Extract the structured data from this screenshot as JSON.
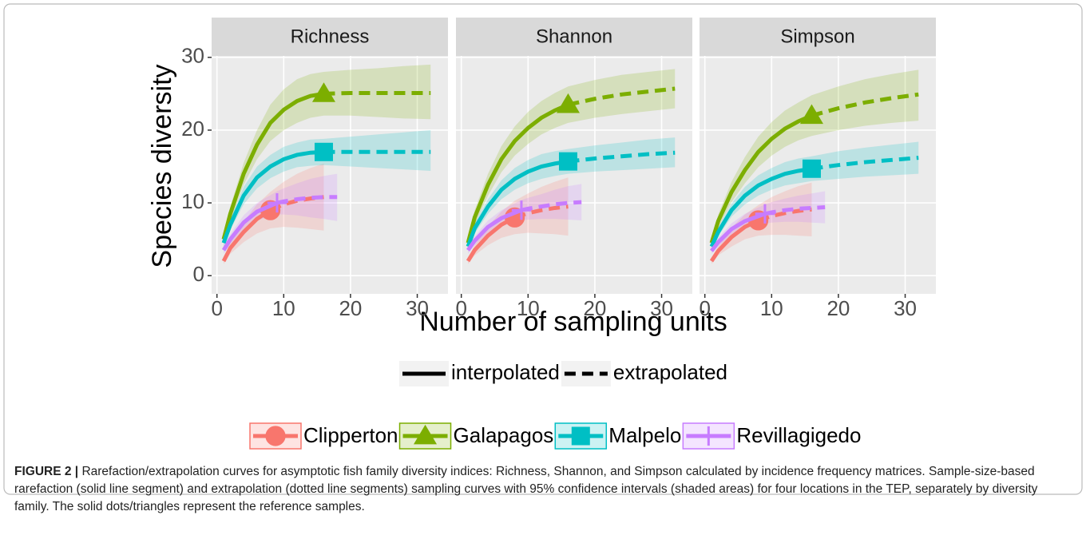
{
  "chart_data": {
    "type": "line",
    "ylabel": "Species diversity",
    "xlabel": "Number of sampling units",
    "xlim": [
      -0.8,
      34.6
    ],
    "xticks": [
      0,
      10,
      20,
      30
    ],
    "ylim": [
      -2.5,
      30.2
    ],
    "yticks": [
      0,
      10,
      20,
      30
    ],
    "grid": true,
    "linetypes": [
      "interpolated",
      "extrapolated"
    ],
    "facets": [
      {
        "title": "Richness",
        "series": [
          {
            "name": "Clipperton",
            "color": "#F8766D",
            "marker": "circle",
            "x": [
              1,
              2,
              4,
              6,
              8,
              10,
              12,
              14,
              16
            ],
            "values": [
              2,
              3.8,
              6,
              7.8,
              9,
              9.8,
              10.3,
              10.6,
              10.8
            ],
            "lower": [
              1.6,
              3,
              4.6,
              5.8,
              6.5,
              6.7,
              6.6,
              6.4,
              6.2
            ],
            "upper": [
              2.4,
              4.6,
              7.4,
              9.8,
              11.5,
              12.9,
              14,
              14.8,
              15.4
            ],
            "reference": {
              "x": 8,
              "y": 9
            }
          },
          {
            "name": "Galapagos",
            "color": "#7CAE00",
            "marker": "triangle",
            "x": [
              1,
              2,
              4,
              6,
              8,
              10,
              12,
              14,
              16,
              20,
              24,
              28,
              32
            ],
            "values": [
              5,
              8.5,
              14,
              18,
              21,
              22.8,
              24,
              24.7,
              25,
              25.1,
              25.1,
              25.1,
              25.1
            ],
            "lower": [
              4.5,
              7.5,
              12.5,
              16,
              18.5,
              20,
              21,
              21.7,
              22,
              22,
              21.8,
              21.6,
              21.5
            ],
            "upper": [
              5.5,
              9.5,
              15.5,
              20,
              23.5,
              25.6,
              27,
              27.7,
              28,
              28.3,
              28.5,
              28.8,
              29
            ],
            "reference": {
              "x": 16,
              "y": 25
            }
          },
          {
            "name": "Malpelo",
            "color": "#00BFC4",
            "marker": "square",
            "x": [
              1,
              2,
              4,
              6,
              8,
              10,
              12,
              14,
              16,
              20,
              24,
              28,
              32
            ],
            "values": [
              4.5,
              7,
              11,
              13.5,
              15,
              16,
              16.6,
              16.9,
              17,
              17,
              17,
              17,
              17
            ],
            "lower": [
              4,
              6.3,
              9.8,
              12,
              13.4,
              14.3,
              14.9,
              15.1,
              15.2,
              15,
              14.8,
              14.6,
              14.4
            ],
            "upper": [
              5,
              7.7,
              12.2,
              15,
              16.6,
              17.7,
              18.3,
              18.7,
              18.8,
              19.1,
              19.4,
              19.7,
              20
            ],
            "reference": {
              "x": 16,
              "y": 17
            }
          },
          {
            "name": "Revillagigedo",
            "color": "#C77CFF",
            "marker": "plus",
            "x": [
              1,
              2,
              4,
              6,
              9,
              10,
              12,
              14,
              16,
              18
            ],
            "values": [
              3.5,
              5,
              7.3,
              8.8,
              10,
              10.2,
              10.5,
              10.7,
              10.8,
              10.8
            ],
            "lower": [
              3,
              4.3,
              6.3,
              7.6,
              8.4,
              8.4,
              8.3,
              8,
              7.8,
              7.5
            ],
            "upper": [
              4,
              5.7,
              8.3,
              10,
              11.6,
              12,
              12.7,
              13.3,
              13.7,
              14
            ],
            "reference": {
              "x": 9,
              "y": 10
            }
          }
        ]
      },
      {
        "title": "Shannon",
        "series": [
          {
            "name": "Clipperton",
            "color": "#F8766D",
            "marker": "circle",
            "x": [
              1,
              2,
              4,
              6,
              8,
              10,
              12,
              14,
              16
            ],
            "values": [
              2,
              3.5,
              5.5,
              7,
              8,
              8.6,
              9,
              9.3,
              9.5
            ],
            "lower": [
              1.6,
              2.8,
              4.2,
              5.2,
              5.7,
              5.9,
              5.8,
              5.7,
              5.5
            ],
            "upper": [
              2.4,
              4.2,
              6.8,
              8.8,
              10.3,
              11.3,
              12.2,
              12.9,
              13.5
            ],
            "reference": {
              "x": 8,
              "y": 8
            }
          },
          {
            "name": "Galapagos",
            "color": "#7CAE00",
            "marker": "triangle",
            "x": [
              1,
              2,
              4,
              6,
              8,
              10,
              12,
              14,
              16,
              20,
              24,
              28,
              32
            ],
            "values": [
              4.5,
              8,
              12.5,
              16,
              18.5,
              20.3,
              21.7,
              22.7,
              23.5,
              24.3,
              24.9,
              25.3,
              25.7
            ],
            "lower": [
              4,
              7,
              11,
              14.2,
              16.5,
              18.1,
              19.4,
              20.3,
              21,
              21.7,
              22.2,
              22.6,
              23
            ],
            "upper": [
              5,
              9,
              14,
              17.8,
              20.5,
              22.5,
              24,
              25.1,
              26,
              26.9,
              27.6,
              28,
              28.4
            ],
            "reference": {
              "x": 16,
              "y": 23.5
            }
          },
          {
            "name": "Malpelo",
            "color": "#00BFC4",
            "marker": "square",
            "x": [
              1,
              2,
              4,
              6,
              8,
              10,
              12,
              14,
              16,
              20,
              24,
              28,
              32
            ],
            "values": [
              4,
              6.5,
              9.5,
              11.8,
              13.3,
              14.3,
              15,
              15.4,
              15.7,
              16.1,
              16.4,
              16.7,
              16.9
            ],
            "lower": [
              3.6,
              5.8,
              8.5,
              10.5,
              11.8,
              12.7,
              13.3,
              13.7,
              14,
              14.3,
              14.5,
              14.7,
              14.9
            ],
            "upper": [
              4.4,
              7.2,
              10.5,
              13.1,
              14.8,
              15.9,
              16.7,
              17.1,
              17.4,
              17.9,
              18.3,
              18.7,
              19
            ],
            "reference": {
              "x": 16,
              "y": 15.7
            }
          },
          {
            "name": "Revillagigedo",
            "color": "#C77CFF",
            "marker": "plus",
            "x": [
              1,
              2,
              4,
              6,
              9,
              10,
              12,
              14,
              16,
              18
            ],
            "values": [
              3.5,
              4.8,
              6.7,
              7.9,
              9,
              9.2,
              9.5,
              9.8,
              10,
              10.1
            ],
            "lower": [
              3,
              4.2,
              5.8,
              6.8,
              7.6,
              7.7,
              7.8,
              7.8,
              7.7,
              7.6
            ],
            "upper": [
              4,
              5.4,
              7.6,
              9,
              10.4,
              10.7,
              11.2,
              11.8,
              12.3,
              12.6
            ],
            "reference": {
              "x": 9,
              "y": 9
            }
          }
        ]
      },
      {
        "title": "Simpson",
        "series": [
          {
            "name": "Clipperton",
            "color": "#F8766D",
            "marker": "circle",
            "x": [
              1,
              2,
              4,
              6,
              8,
              10,
              12,
              14,
              16
            ],
            "values": [
              2,
              3.4,
              5.3,
              6.7,
              7.6,
              8.2,
              8.6,
              8.9,
              9.1
            ],
            "lower": [
              1.6,
              2.8,
              4,
              5,
              5.5,
              5.6,
              5.6,
              5.5,
              5.4
            ],
            "upper": [
              2.4,
              4,
              6.6,
              8.4,
              9.7,
              10.8,
              11.6,
              12.3,
              12.8
            ],
            "reference": {
              "x": 8,
              "y": 7.6
            }
          },
          {
            "name": "Galapagos",
            "color": "#7CAE00",
            "marker": "triangle",
            "x": [
              1,
              2,
              4,
              6,
              8,
              10,
              12,
              14,
              16,
              20,
              24,
              28,
              32
            ],
            "values": [
              4.5,
              7.5,
              11.5,
              14.5,
              17,
              18.8,
              20.2,
              21.2,
              22,
              23,
              23.8,
              24.4,
              24.9
            ],
            "lower": [
              4,
              6.6,
              10.1,
              12.7,
              14.9,
              16.5,
              17.7,
              18.6,
              19.2,
              20,
              20.6,
              21,
              21.3
            ],
            "upper": [
              5,
              8.4,
              12.9,
              16.3,
              19.1,
              21.1,
              22.7,
              23.8,
              24.8,
              26,
              27,
              27.7,
              28.3
            ],
            "reference": {
              "x": 16,
              "y": 22
            }
          },
          {
            "name": "Malpelo",
            "color": "#00BFC4",
            "marker": "square",
            "x": [
              1,
              2,
              4,
              6,
              8,
              10,
              12,
              14,
              16,
              20,
              24,
              28,
              32
            ],
            "values": [
              4,
              6,
              9,
              11,
              12.4,
              13.3,
              14,
              14.4,
              14.7,
              15.2,
              15.6,
              15.9,
              16.2
            ],
            "lower": [
              3.6,
              5.4,
              8.1,
              9.8,
              11,
              11.8,
              12.4,
              12.7,
              13,
              13.3,
              13.6,
              13.8,
              14
            ],
            "upper": [
              4.4,
              6.6,
              9.9,
              12.2,
              13.8,
              14.8,
              15.6,
              16.1,
              16.4,
              17.1,
              17.6,
              18,
              18.4
            ],
            "reference": {
              "x": 16,
              "y": 14.7
            }
          },
          {
            "name": "Revillagigedo",
            "color": "#C77CFF",
            "marker": "plus",
            "x": [
              1,
              2,
              4,
              6,
              9,
              10,
              12,
              14,
              16,
              18
            ],
            "values": [
              3.4,
              4.6,
              6.4,
              7.5,
              8.5,
              8.7,
              9,
              9.2,
              9.3,
              9.4
            ],
            "lower": [
              3,
              4,
              5.6,
              6.5,
              7.2,
              7.3,
              7.4,
              7.4,
              7.3,
              7.2
            ],
            "upper": [
              3.8,
              5.2,
              7.2,
              8.5,
              9.8,
              10.1,
              10.6,
              11,
              11.3,
              11.6
            ],
            "reference": {
              "x": 9,
              "y": 8.5
            }
          }
        ]
      }
    ],
    "caption": {
      "label": "FIGURE 2 |",
      "text": "Rarefaction/extrapolation curves for asymptotic fish family diversity indices: Richness, Shannon, and Simpson calculated by incidence frequency matrices. Sample-size-based rarefaction (solid line segment) and extrapolation (dotted line segments) sampling curves with 95% confidence intervals (shaded areas) for four locations in the TEP, separately by diversity family. The solid dots/triangles represent the reference samples."
    }
  }
}
